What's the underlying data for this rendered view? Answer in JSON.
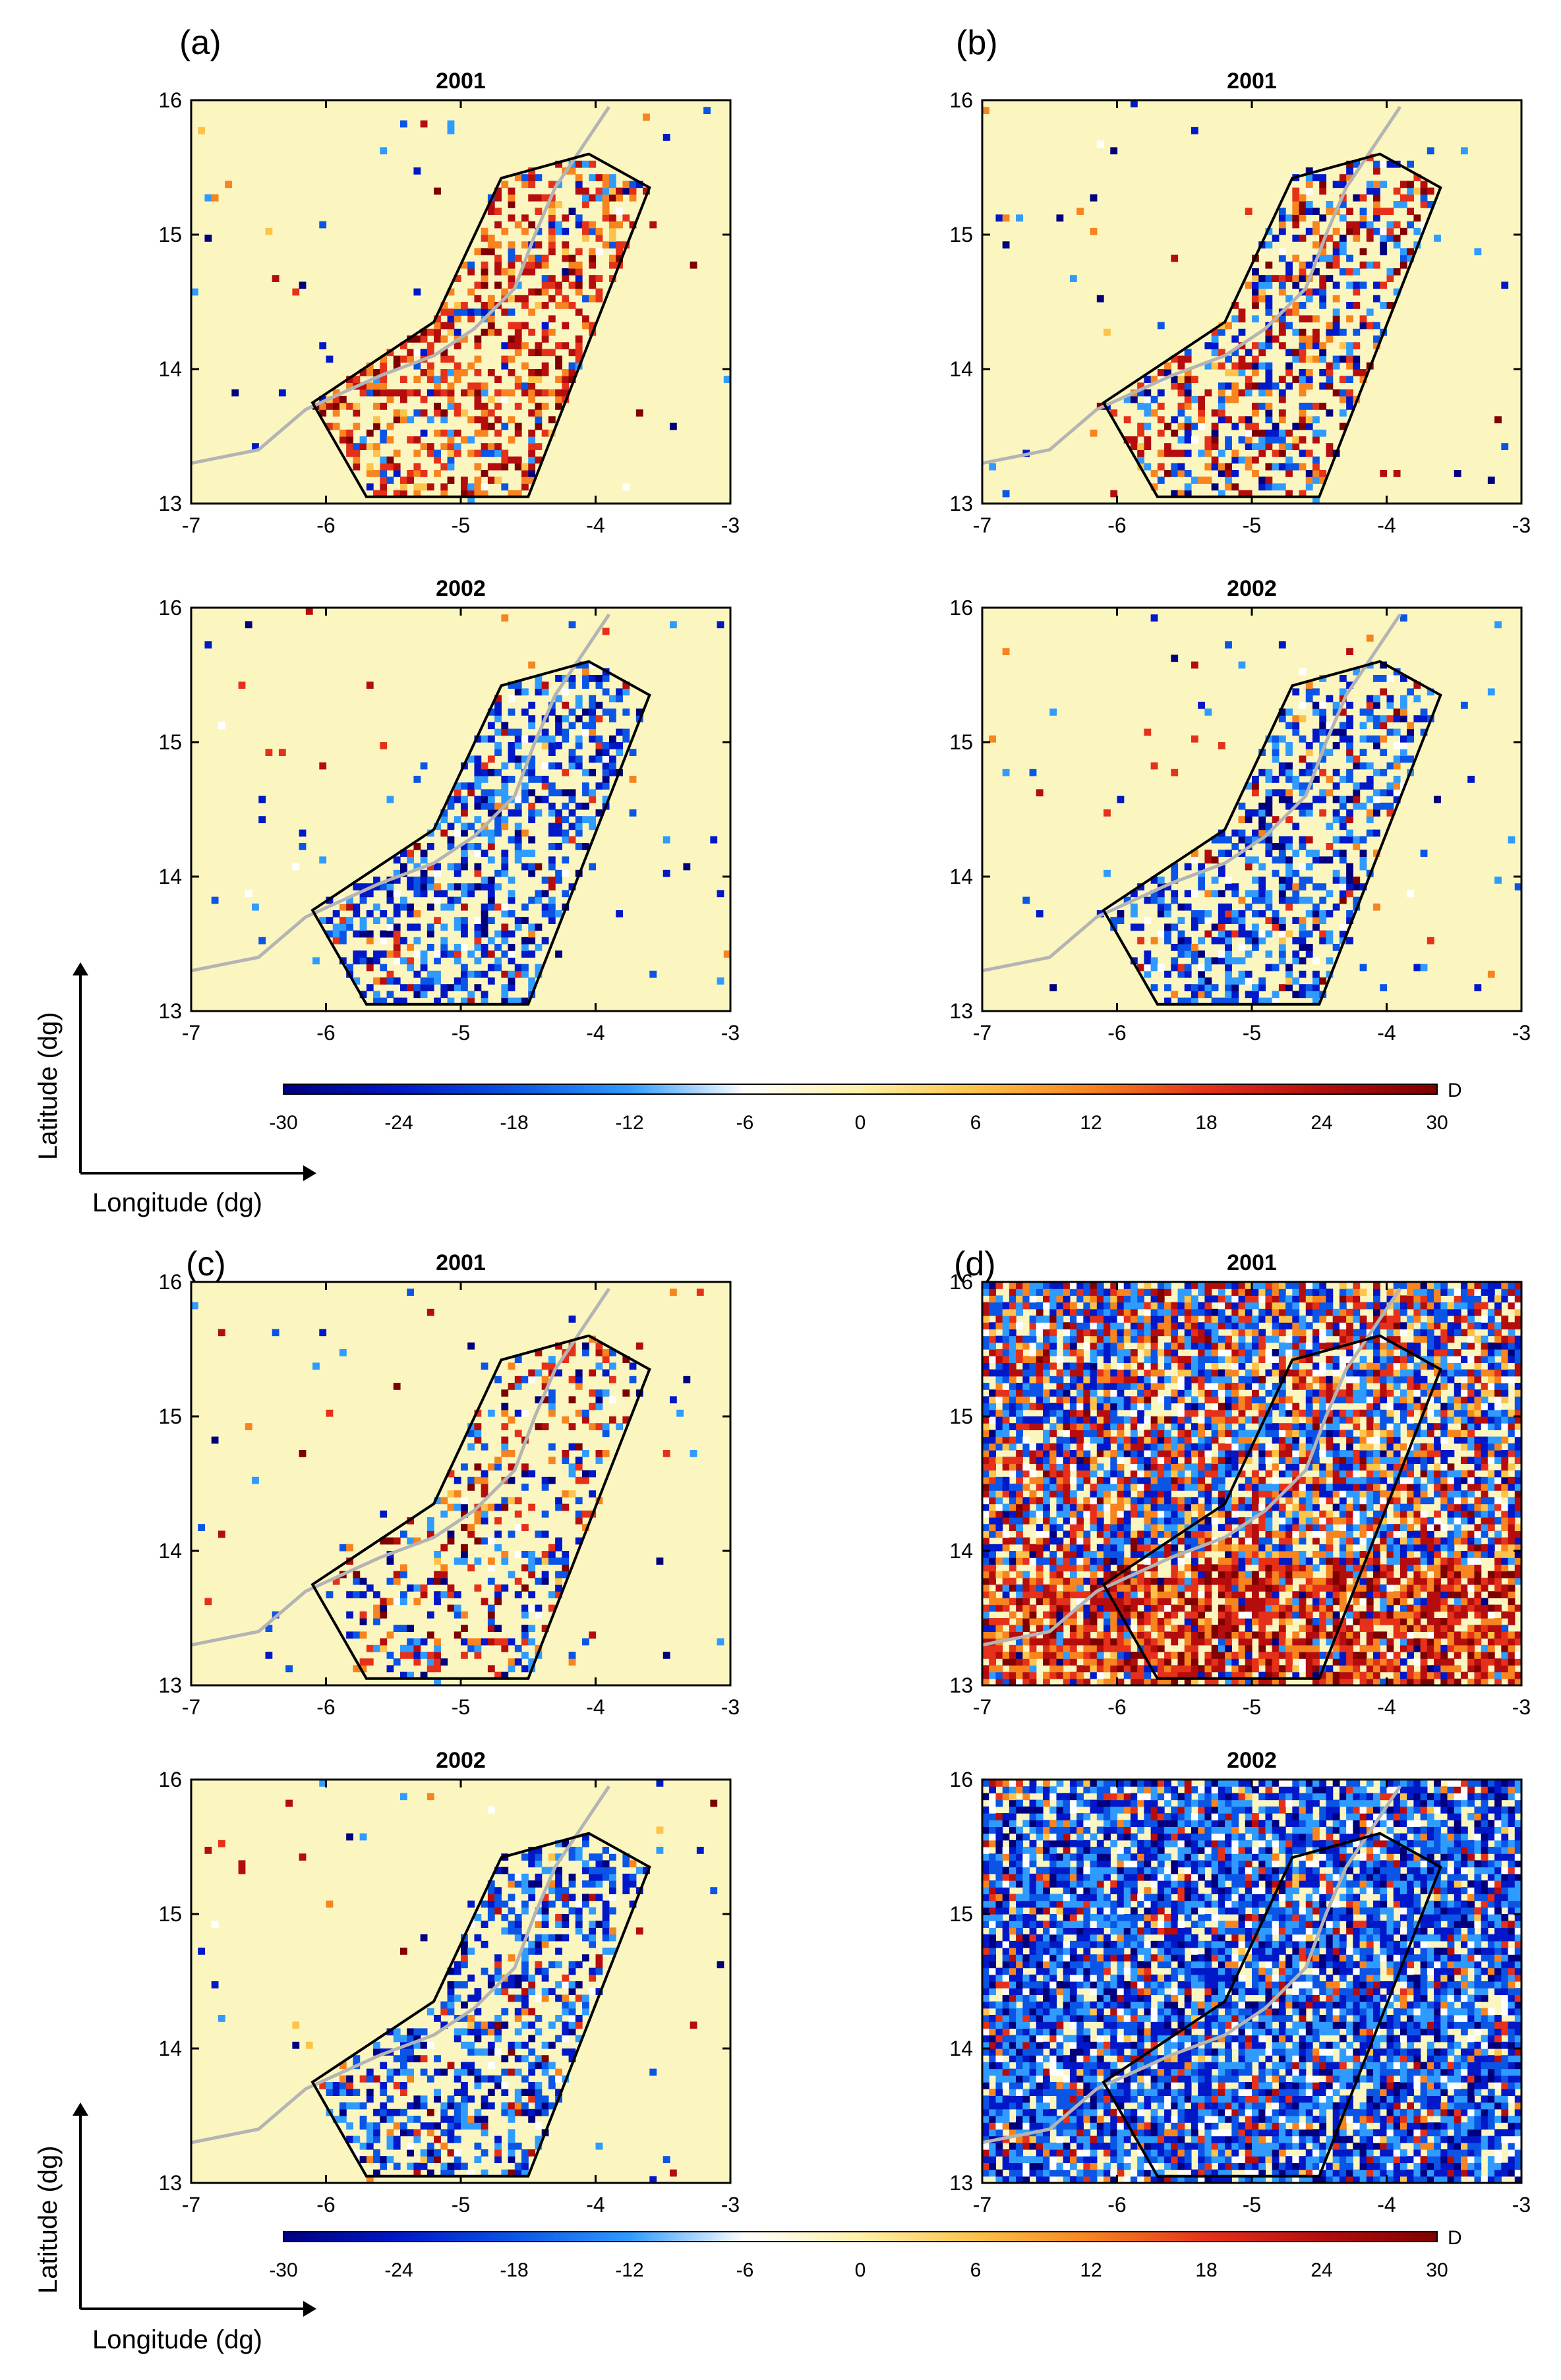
{
  "colors": {
    "background_yellow": "#fbf6c0",
    "polygon": "#000000",
    "river": "#b4b4b4",
    "colormap": [
      "#00007f",
      "#0018c8",
      "#0a55e6",
      "#2f9bff",
      "#ffffff",
      "#fff1a8",
      "#fdc34a",
      "#f7841e",
      "#e5311a",
      "#b50d0d",
      "#7f0000"
    ]
  },
  "colorbar": {
    "unit_label": "D",
    "ticks": [
      "-30",
      "-24",
      "-18",
      "-12",
      "-6",
      "0",
      "6",
      "12",
      "18",
      "24",
      "30"
    ]
  },
  "axis_notes": {
    "ylabel": "Latitude (dg)",
    "xlabel": "Longitude (dg)"
  },
  "chart_data": [
    {
      "type": "heatmap",
      "panel": "(a)",
      "title": "2001",
      "x_ticks": [
        "-7",
        "-6",
        "-5",
        "-4",
        "-3"
      ],
      "y_ticks": [
        "13",
        "14",
        "15",
        "16"
      ],
      "xlim": [
        -7,
        -3
      ],
      "ylim": [
        13,
        16
      ],
      "pattern": "positive-inside-polygon"
    },
    {
      "type": "heatmap",
      "panel": "(b)",
      "title": "2001",
      "x_ticks": [
        "-7",
        "-6",
        "-5",
        "-4",
        "-3"
      ],
      "y_ticks": [
        "13",
        "14",
        "15",
        "16"
      ],
      "xlim": [
        -7,
        -3
      ],
      "ylim": [
        13,
        16
      ],
      "pattern": "mixed-inside-polygon"
    },
    {
      "type": "heatmap",
      "panel": "(a)",
      "title": "2002",
      "x_ticks": [
        "-7",
        "-6",
        "-5",
        "-4",
        "-3"
      ],
      "y_ticks": [
        "13",
        "14",
        "15",
        "16"
      ],
      "xlim": [
        -7,
        -3
      ],
      "ylim": [
        13,
        16
      ],
      "pattern": "negative-inside-polygon"
    },
    {
      "type": "heatmap",
      "panel": "(b)",
      "title": "2002",
      "x_ticks": [
        "-7",
        "-6",
        "-5",
        "-4",
        "-3"
      ],
      "y_ticks": [
        "13",
        "14",
        "15",
        "16"
      ],
      "xlim": [
        -7,
        -3
      ],
      "ylim": [
        13,
        16
      ],
      "pattern": "negative-mixed-inside-polygon"
    },
    {
      "type": "heatmap",
      "panel": "(c)",
      "title": "2001",
      "x_ticks": [
        "-7",
        "-6",
        "-5",
        "-4",
        "-3"
      ],
      "y_ticks": [
        "13",
        "14",
        "15",
        "16"
      ],
      "xlim": [
        -7,
        -3
      ],
      "ylim": [
        13,
        16
      ],
      "pattern": "sparse-mixed-inside-polygon"
    },
    {
      "type": "heatmap",
      "panel": "(d)",
      "title": "2001",
      "x_ticks": [
        "-7",
        "-6",
        "-5",
        "-4",
        "-3"
      ],
      "y_ticks": [
        "13",
        "14",
        "15",
        "16"
      ],
      "xlim": [
        -7,
        -3
      ],
      "ylim": [
        13,
        16
      ],
      "pattern": "full-field-positive-south"
    },
    {
      "type": "heatmap",
      "panel": "(c)",
      "title": "2002",
      "x_ticks": [
        "-7",
        "-6",
        "-5",
        "-4",
        "-3"
      ],
      "y_ticks": [
        "13",
        "14",
        "15",
        "16"
      ],
      "xlim": [
        -7,
        -3
      ],
      "ylim": [
        13,
        16
      ],
      "pattern": "negative-inside-polygon"
    },
    {
      "type": "heatmap",
      "panel": "(d)",
      "title": "2002",
      "x_ticks": [
        "-7",
        "-6",
        "-5",
        "-4",
        "-3"
      ],
      "y_ticks": [
        "13",
        "14",
        "15",
        "16"
      ],
      "xlim": [
        -7,
        -3
      ],
      "ylim": [
        13,
        16
      ],
      "pattern": "full-field-negative"
    }
  ]
}
